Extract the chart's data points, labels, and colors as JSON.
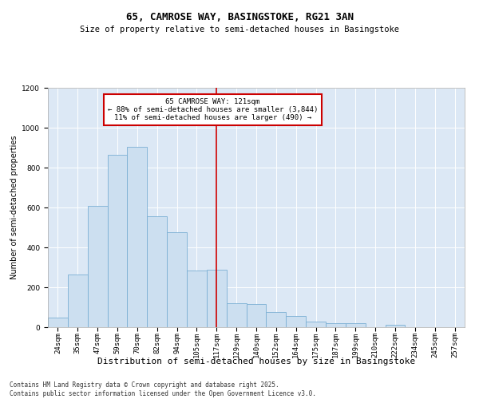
{
  "title": "65, CAMROSE WAY, BASINGSTOKE, RG21 3AN",
  "subtitle": "Size of property relative to semi-detached houses in Basingstoke",
  "xlabel": "Distribution of semi-detached houses by size in Basingstoke",
  "ylabel": "Number of semi-detached properties",
  "bar_labels": [
    "24sqm",
    "35sqm",
    "47sqm",
    "59sqm",
    "70sqm",
    "82sqm",
    "94sqm",
    "105sqm",
    "117sqm",
    "129sqm",
    "140sqm",
    "152sqm",
    "164sqm",
    "175sqm",
    "187sqm",
    "199sqm",
    "210sqm",
    "222sqm",
    "234sqm",
    "245sqm",
    "257sqm"
  ],
  "bar_values": [
    50,
    265,
    610,
    865,
    905,
    555,
    475,
    285,
    290,
    120,
    115,
    75,
    55,
    28,
    20,
    20,
    0,
    14,
    0,
    0,
    0
  ],
  "bar_color": "#ccdff0",
  "bar_edge_color": "#7bafd4",
  "vline_x": 8,
  "vline_color": "#cc0000",
  "annotation_title": "65 CAMROSE WAY: 121sqm",
  "annotation_line1": "← 88% of semi-detached houses are smaller (3,844)",
  "annotation_line2": "11% of semi-detached houses are larger (490) →",
  "annotation_box_color": "#cc0000",
  "ylim": [
    0,
    1200
  ],
  "yticks": [
    0,
    200,
    400,
    600,
    800,
    1000,
    1200
  ],
  "background_color": "#dce8f5",
  "footer": "Contains HM Land Registry data © Crown copyright and database right 2025.\nContains public sector information licensed under the Open Government Licence v3.0.",
  "title_fontsize": 9,
  "subtitle_fontsize": 7.5,
  "xlabel_fontsize": 8,
  "ylabel_fontsize": 7,
  "tick_fontsize": 6.5,
  "annot_fontsize": 6.5,
  "footer_fontsize": 5.5
}
